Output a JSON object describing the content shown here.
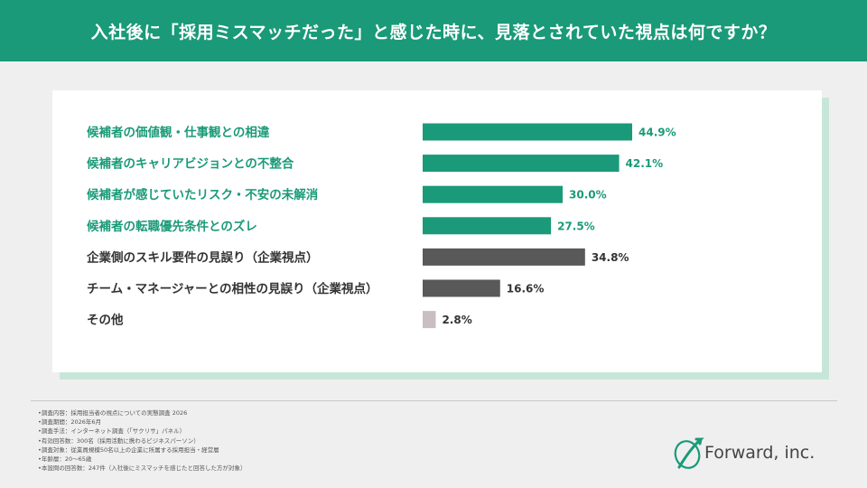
{
  "header": {
    "title": "入社後に「採用ミスマッチだった」と感じた時に、見落とされていた視点は何ですか？"
  },
  "chart_data": {
    "type": "bar",
    "orientation": "horizontal",
    "title": "",
    "xlabel": "",
    "ylabel": "",
    "xlim": [
      0,
      50
    ],
    "grid": false,
    "categories": [
      "候補者の価値観・仕事観との相違",
      "候補者のキャリアビジョンとの不整合",
      "候補者が感じていたリスク・不安の未解消",
      "候補者の転職優先条件とのズレ",
      "企業側のスキル要件の見誤り（企業視点）",
      "チーム・マネージャーとの相性の見誤り（企業視点）",
      "その他"
    ],
    "values": [
      44.9,
      42.1,
      30.0,
      27.5,
      34.8,
      16.6,
      2.8
    ],
    "value_labels": [
      "44.9%",
      "42.1%",
      "30.0%",
      "27.5%",
      "34.8%",
      "16.6%",
      "2.8%"
    ],
    "bar_colors": [
      "#1a9a78",
      "#1a9a78",
      "#1a9a78",
      "#1a9a78",
      "#595959",
      "#595959",
      "#c9bfc3"
    ],
    "label_colors": [
      "#1a9a78",
      "#1a9a78",
      "#1a9a78",
      "#1a9a78",
      "#333333",
      "#333333",
      "#333333"
    ]
  },
  "notes": [
    "•調査内容：採用担当者の視点についての実態調査 2026",
    "•調査期間：2026年6月",
    "•調査手法：インターネット調査（「サクリサ」パネル）",
    "•有効回答数：300名（採用活動に携わるビジネスパーソン）",
    "•調査対象：従業員規模50名以上の企業に所属する採用担当・経営層",
    "•年齢層：20〜65歳",
    "•本設問の回答数：247件（入社後にミスマッチを感じたと回答した方が対象）"
  ],
  "logo": {
    "text": "Forward, inc."
  },
  "colors": {
    "brand": "#1a9a78",
    "dark": "#595959",
    "muted": "#c9bfc3"
  }
}
